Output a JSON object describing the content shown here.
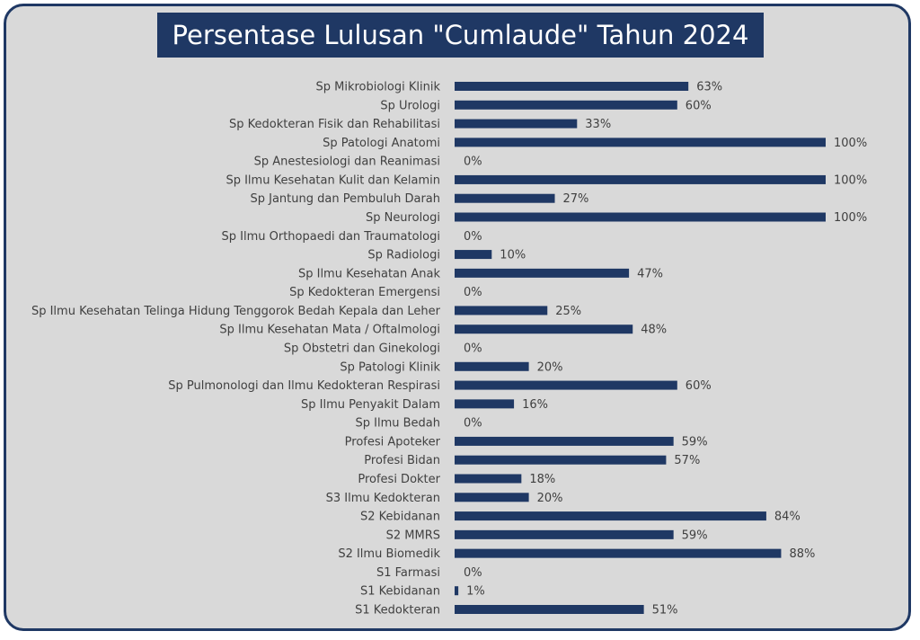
{
  "chart_data": {
    "type": "bar",
    "orientation": "horizontal",
    "title": "Persentase Lulusan \"Cumlaude\" Tahun 2024",
    "xlim": [
      0,
      100
    ],
    "grid": false,
    "bar_color": "#1f3864",
    "background_color": "#d9d9d9",
    "categories": [
      "Sp Mikrobiologi Klinik",
      "Sp Urologi",
      "Sp Kedokteran Fisik dan Rehabilitasi",
      "Sp Patologi Anatomi",
      "Sp Anestesiologi dan Reanimasi",
      "Sp Ilmu Kesehatan Kulit dan Kelamin",
      "Sp Jantung dan Pembuluh Darah",
      "Sp Neurologi",
      "Sp Ilmu Orthopaedi dan Traumatologi",
      "Sp Radiologi",
      "Sp Ilmu Kesehatan Anak",
      "Sp Kedokteran Emergensi",
      "Sp Ilmu Kesehatan Telinga Hidung Tenggorok Bedah Kepala dan Leher",
      "Sp Ilmu Kesehatan Mata / Oftalmologi",
      "Sp Obstetri dan Ginekologi",
      "Sp Patologi Klinik",
      "Sp Pulmonologi dan Ilmu Kedokteran Respirasi",
      "Sp Ilmu Penyakit Dalam",
      "Sp Ilmu Bedah",
      "Profesi Apoteker",
      "Profesi Bidan",
      "Profesi Dokter",
      "S3 Ilmu Kedokteran",
      "S2 Kebidanan",
      "S2 MMRS",
      "S2 Ilmu Biomedik",
      "S1 Farmasi",
      "S1 Kebidanan",
      "S1 Kedokteran"
    ],
    "values": [
      63,
      60,
      33,
      100,
      0,
      100,
      27,
      100,
      0,
      10,
      47,
      0,
      25,
      48,
      0,
      20,
      60,
      16,
      0,
      59,
      57,
      18,
      20,
      84,
      59,
      88,
      0,
      1,
      51
    ],
    "value_labels": [
      "63%",
      "60%",
      "33%",
      "100%",
      "0%",
      "100%",
      "27%",
      "100%",
      "0%",
      "10%",
      "47%",
      "0%",
      "25%",
      "48%",
      "0%",
      "20%",
      "60%",
      "16%",
      "0%",
      "59%",
      "57%",
      "18%",
      "20%",
      "84%",
      "59%",
      "88%",
      "0%",
      "1%",
      "51%"
    ]
  }
}
